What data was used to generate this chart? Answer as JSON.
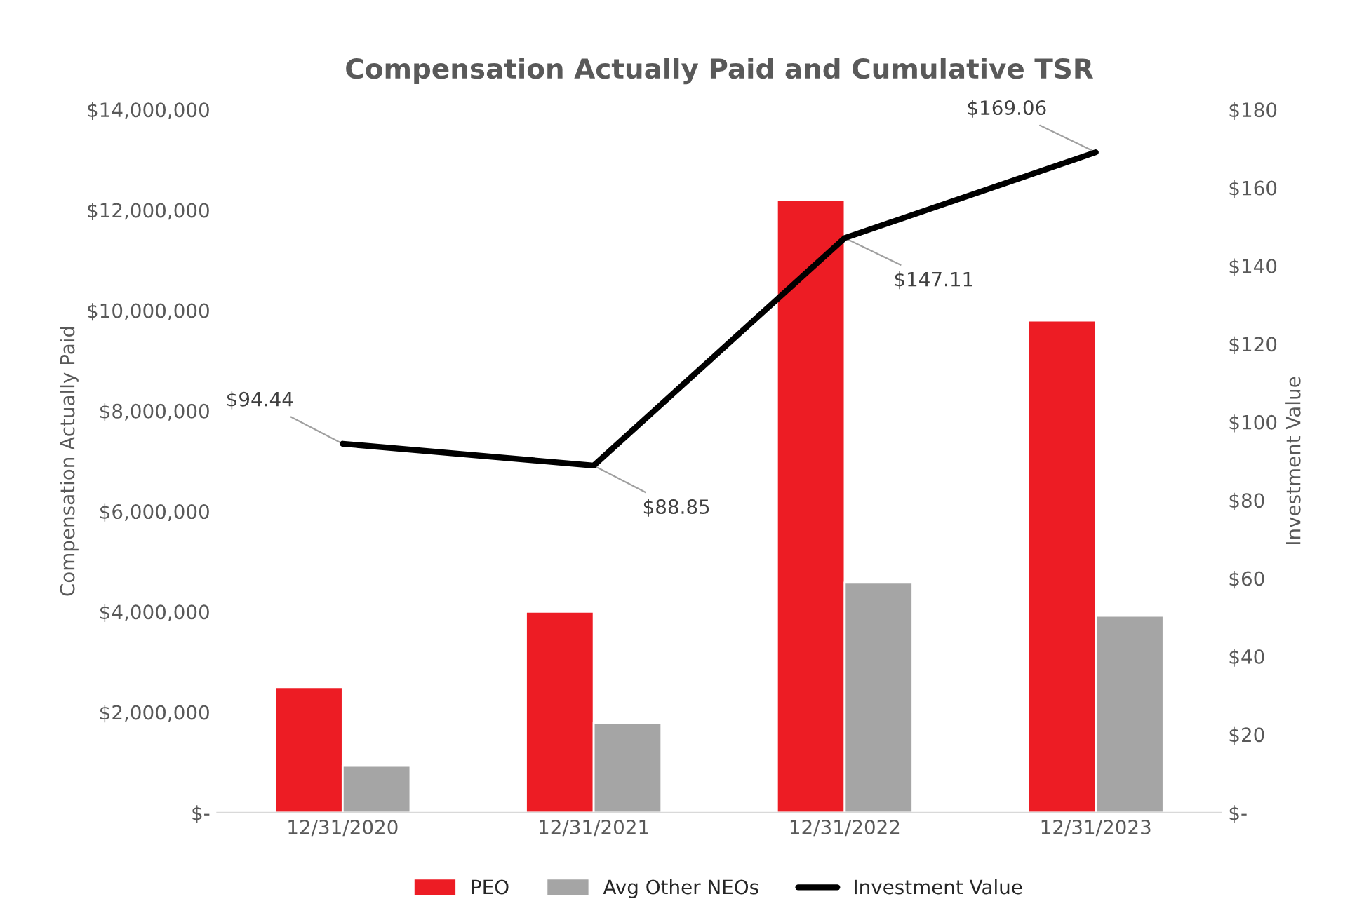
{
  "chart_data": {
    "type": "bar",
    "title": "Compensation Actually Paid and Cumulative TSR",
    "ylabel": "Compensation Actually Paid",
    "y2label": "Investment Value",
    "categories": [
      "12/31/2020",
      "12/31/2021",
      "12/31/2022",
      "12/31/2023"
    ],
    "series": [
      {
        "name": "PEO",
        "color": "#ed1c24",
        "values": [
          2500000,
          4000000,
          12200000,
          9800000
        ]
      },
      {
        "name": "Avg Other NEOs",
        "color": "#a5a5a5",
        "values": [
          930000,
          1780000,
          4580000,
          3920000
        ]
      },
      {
        "name": "Investment Value",
        "type": "line",
        "axis": "y2",
        "color": "#000000",
        "values": [
          94.44,
          88.85,
          147.11,
          169.06
        ],
        "value_labels": [
          "$94.44",
          "$88.85",
          "$147.11",
          "$169.06"
        ]
      }
    ],
    "ylim": [
      0,
      14000000
    ],
    "yticks": [
      {
        "value": 0,
        "label": "$-"
      },
      {
        "value": 2000000,
        "label": "$2,000,000"
      },
      {
        "value": 4000000,
        "label": "$4,000,000"
      },
      {
        "value": 6000000,
        "label": "$6,000,000"
      },
      {
        "value": 8000000,
        "label": "$8,000,000"
      },
      {
        "value": 10000000,
        "label": "$10,000,000"
      },
      {
        "value": 12000000,
        "label": "$12,000,000"
      },
      {
        "value": 14000000,
        "label": "$14,000,000"
      }
    ],
    "y2lim": [
      0,
      180
    ],
    "y2ticks": [
      {
        "value": 0,
        "label": "$-"
      },
      {
        "value": 20,
        "label": "$20"
      },
      {
        "value": 40,
        "label": "$40"
      },
      {
        "value": 60,
        "label": "$60"
      },
      {
        "value": 80,
        "label": "$80"
      },
      {
        "value": 100,
        "label": "$100"
      },
      {
        "value": 120,
        "label": "$120"
      },
      {
        "value": 140,
        "label": "$140"
      },
      {
        "value": 160,
        "label": "$160"
      },
      {
        "value": 180,
        "label": "$180"
      }
    ],
    "legend": "bottom",
    "grid": false,
    "line_style": "solid",
    "marker": "none"
  }
}
